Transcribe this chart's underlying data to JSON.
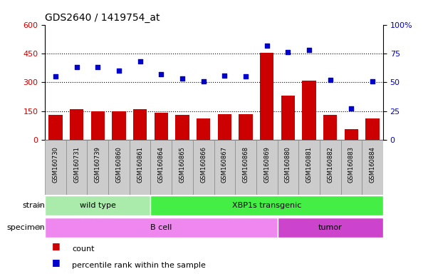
{
  "title": "GDS2640 / 1419754_at",
  "samples": [
    "GSM160730",
    "GSM160731",
    "GSM160739",
    "GSM160860",
    "GSM160861",
    "GSM160864",
    "GSM160865",
    "GSM160866",
    "GSM160867",
    "GSM160868",
    "GSM160869",
    "GSM160880",
    "GSM160881",
    "GSM160882",
    "GSM160883",
    "GSM160884"
  ],
  "counts": [
    130,
    158,
    148,
    148,
    160,
    140,
    128,
    112,
    135,
    132,
    455,
    230,
    310,
    128,
    55,
    112
  ],
  "percentiles": [
    55,
    63,
    63,
    60,
    68,
    57,
    53,
    51,
    56,
    55,
    82,
    76,
    78,
    52,
    27,
    51
  ],
  "ylim_left": [
    0,
    600
  ],
  "ylim_right": [
    0,
    100
  ],
  "yticks_left": [
    0,
    150,
    300,
    450,
    600
  ],
  "yticks_right": [
    0,
    25,
    50,
    75,
    100
  ],
  "bar_color": "#cc0000",
  "dot_color": "#0000cc",
  "strain_groups": [
    {
      "label": "wild type",
      "start": 0,
      "end": 5,
      "color": "#aaeaaa"
    },
    {
      "label": "XBP1s transgenic",
      "start": 5,
      "end": 16,
      "color": "#44ee44"
    }
  ],
  "specimen_groups": [
    {
      "label": "B cell",
      "start": 0,
      "end": 11,
      "color": "#ee88ee"
    },
    {
      "label": "tumor",
      "start": 11,
      "end": 16,
      "color": "#cc44cc"
    }
  ],
  "legend_count_label": "count",
  "legend_pct_label": "percentile rank within the sample",
  "strain_label": "strain",
  "specimen_label": "specimen",
  "tickbox_color": "#cccccc",
  "tickbox_edge": "#888888"
}
